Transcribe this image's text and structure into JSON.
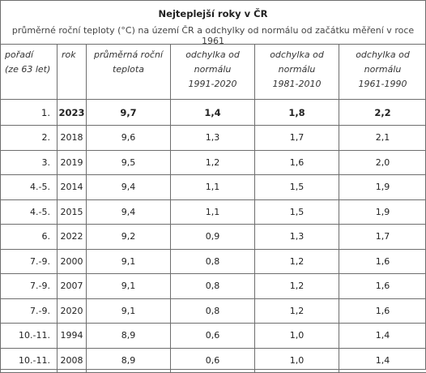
{
  "title": "Nejteplejší roky v ČR",
  "subtitle": "průměrné roční teploty (°C) na území ČR a odchylky od normálu od začátku měření v roce 1961",
  "headers": {
    "rank": [
      "pořadí",
      "(ze 63 let)"
    ],
    "year": [
      "rok"
    ],
    "avg": [
      "průměrná roční",
      "teplota"
    ],
    "dev1": [
      "odchylka od",
      "normálu",
      "1991-2020"
    ],
    "dev2": [
      "odchylka od",
      "normálu",
      "1981-2010"
    ],
    "dev3": [
      "odchylka od",
      "normálu",
      "1961-1990"
    ]
  },
  "rows": [
    {
      "rank": "1.",
      "year": "2023",
      "avg": "9,7",
      "dev1": "1,4",
      "dev2": "1,8",
      "dev3": "2,2"
    },
    {
      "rank": "2.",
      "year": "2018",
      "avg": "9,6",
      "dev1": "1,3",
      "dev2": "1,7",
      "dev3": "2,1"
    },
    {
      "rank": "3.",
      "year": "2019",
      "avg": "9,5",
      "dev1": "1,2",
      "dev2": "1,6",
      "dev3": "2,0"
    },
    {
      "rank": "4.-5.",
      "year": "2014",
      "avg": "9,4",
      "dev1": "1,1",
      "dev2": "1,5",
      "dev3": "1,9"
    },
    {
      "rank": "4.-5.",
      "year": "2015",
      "avg": "9,4",
      "dev1": "1,1",
      "dev2": "1,5",
      "dev3": "1,9"
    },
    {
      "rank": "6.",
      "year": "2022",
      "avg": "9,2",
      "dev1": "0,9",
      "dev2": "1,3",
      "dev3": "1,7"
    },
    {
      "rank": "7.-9.",
      "year": "2000",
      "avg": "9,1",
      "dev1": "0,8",
      "dev2": "1,2",
      "dev3": "1,6"
    },
    {
      "rank": "7.-9.",
      "year": "2007",
      "avg": "9,1",
      "dev1": "0,8",
      "dev2": "1,2",
      "dev3": "1,6"
    },
    {
      "rank": "7.-9.",
      "year": "2020",
      "avg": "9,1",
      "dev1": "0,8",
      "dev2": "1,2",
      "dev3": "1,6"
    },
    {
      "rank": "10.-11.",
      "year": "1994",
      "avg": "8,9",
      "dev1": "0,6",
      "dev2": "1,0",
      "dev3": "1,4"
    },
    {
      "rank": "10.-11.",
      "year": "2008",
      "avg": "8,9",
      "dev1": "0,6",
      "dev2": "1,0",
      "dev3": "1,4"
    }
  ]
}
